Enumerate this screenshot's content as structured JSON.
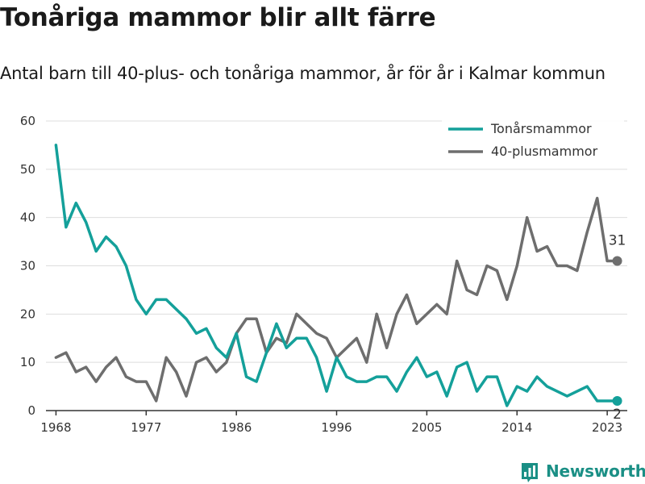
{
  "header": {
    "title": "Tonåriga mammor blir allt färre",
    "subtitle": "Antal barn till 40-plus- och tonåriga mammor, år för år i Kalmar kommun"
  },
  "brand": {
    "name": "Newsworthy",
    "icon": "bar-chart-logo-icon",
    "color": "#1a8f85"
  },
  "chart_data": {
    "type": "line",
    "title": "Tonåriga mammor blir allt färre",
    "subtitle": "Antal barn till 40-plus- och tonåriga mammor, år för år i Kalmar kommun",
    "xlabel": "",
    "ylabel": "",
    "xlim": [
      1967,
      2025
    ],
    "ylim": [
      0,
      60
    ],
    "x_ticks": [
      1968,
      1977,
      1986,
      1996,
      2005,
      2014,
      2023
    ],
    "y_ticks": [
      0,
      10,
      20,
      30,
      40,
      50,
      60
    ],
    "grid": true,
    "legend_position": "top-right",
    "x": [
      1968,
      1969,
      1970,
      1971,
      1972,
      1973,
      1974,
      1975,
      1976,
      1977,
      1978,
      1979,
      1980,
      1981,
      1982,
      1983,
      1984,
      1985,
      1986,
      1987,
      1988,
      1989,
      1990,
      1991,
      1992,
      1993,
      1994,
      1995,
      1996,
      1997,
      1998,
      1999,
      2000,
      2001,
      2002,
      2003,
      2004,
      2005,
      2006,
      2007,
      2008,
      2009,
      2010,
      2011,
      2012,
      2013,
      2014,
      2015,
      2016,
      2017,
      2018,
      2019,
      2020,
      2021,
      2022,
      2023,
      2024
    ],
    "series": [
      {
        "name": "Tonårsmammor",
        "color": "#14a09a",
        "values": [
          55,
          38,
          43,
          39,
          33,
          36,
          34,
          30,
          23,
          20,
          23,
          23,
          21,
          19,
          16,
          17,
          13,
          11,
          16,
          7,
          6,
          12,
          18,
          13,
          15,
          15,
          11,
          4,
          11,
          7,
          6,
          6,
          7,
          7,
          4,
          8,
          11,
          7,
          8,
          3,
          9,
          10,
          4,
          7,
          7,
          1,
          5,
          4,
          7,
          5,
          4,
          3,
          4,
          5,
          2,
          2,
          2
        ],
        "end_label": "2"
      },
      {
        "name": "40-plusmammor",
        "color": "#6e6e6e",
        "values": [
          11,
          12,
          8,
          9,
          6,
          9,
          11,
          7,
          6,
          6,
          2,
          11,
          8,
          3,
          10,
          11,
          8,
          10,
          16,
          19,
          19,
          12,
          15,
          14,
          20,
          18,
          16,
          15,
          11,
          13,
          15,
          10,
          20,
          13,
          20,
          24,
          18,
          20,
          22,
          20,
          31,
          25,
          24,
          30,
          29,
          23,
          30,
          40,
          33,
          34,
          30,
          30,
          29,
          37,
          44,
          31,
          31
        ],
        "end_label": "31"
      }
    ]
  }
}
